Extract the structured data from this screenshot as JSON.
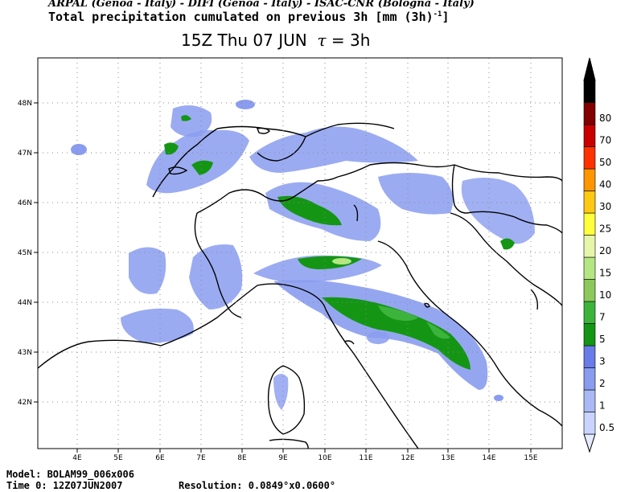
{
  "header": {
    "institutions": "ARPAL (Genoa - Italy)  -  DIFI (Genoa - Italy)  -  ISAC-CNR (Bologna - Italy)",
    "title": "Total precipitation cumulated on previous 3h [mm (3h)",
    "title_exp": "-1",
    "title_close": "]",
    "time_label": "15Z Thu 07 JUN",
    "tau_symbol": "τ",
    "tau_value": "= 3h"
  },
  "map": {
    "lon_labels": [
      "4E",
      "5E",
      "6E",
      "7E",
      "8E",
      "9E",
      "10E",
      "11E",
      "12E",
      "13E",
      "14E",
      "15E"
    ],
    "lat_labels": [
      "48N",
      "47N",
      "46N",
      "45N",
      "44N",
      "43N",
      "42N"
    ]
  },
  "legend": {
    "levels": [
      "0.5",
      "1",
      "2",
      "3",
      "5",
      "7",
      "10",
      "15",
      "20",
      "25",
      "30",
      "40",
      "50",
      "70",
      "80"
    ],
    "colors": [
      "#e6ebff",
      "#c8d4ff",
      "#aab9f5",
      "#8a9cf0",
      "#6a7ce8",
      "#149614",
      "#3cb43c",
      "#8cc85a",
      "#b4e682",
      "#e6f5aa",
      "#ffff3c",
      "#ffc814",
      "#ff9600",
      "#ff3200",
      "#c80000",
      "#820000",
      "#000000"
    ]
  },
  "footer": {
    "model": "Model: BOLAM99_006x006",
    "time0": "Time 0: 12Z07JUN2007",
    "resolution": "Resolution: 0.0849°x0.0600°"
  }
}
